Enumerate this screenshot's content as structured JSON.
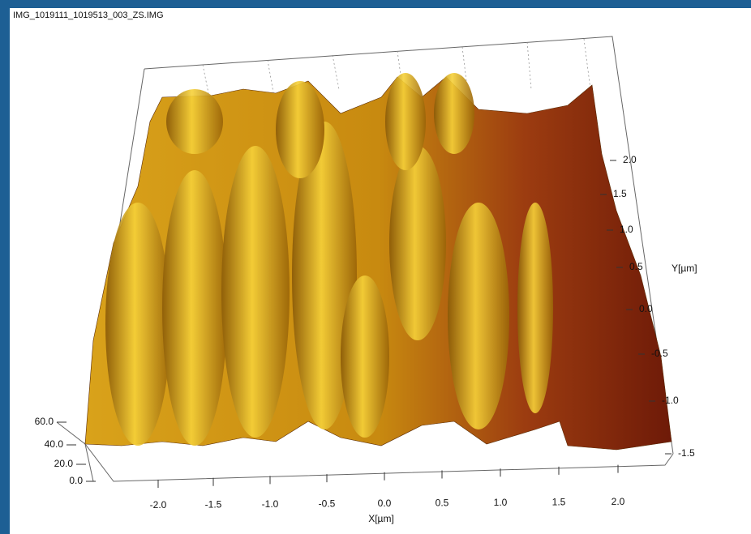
{
  "window": {
    "title": "IMG_1019111_1019513_003_ZS.IMG"
  },
  "plot": {
    "x_axis": {
      "label": "X[µm]",
      "ticks": [
        "-2.0",
        "-1.5",
        "-1.0",
        "-0.5",
        "0.0",
        "0.5",
        "1.0",
        "1.5",
        "2.0"
      ]
    },
    "y_axis": {
      "label": "Y[µm]",
      "ticks": [
        "2.0",
        "1.5",
        "1.0",
        "0.5",
        "0.0",
        "-0.5",
        "-1.0",
        "-1.5"
      ]
    },
    "z_axis": {
      "ticks": [
        "60.0",
        "40.0",
        "20.0",
        "0.0"
      ]
    }
  }
}
